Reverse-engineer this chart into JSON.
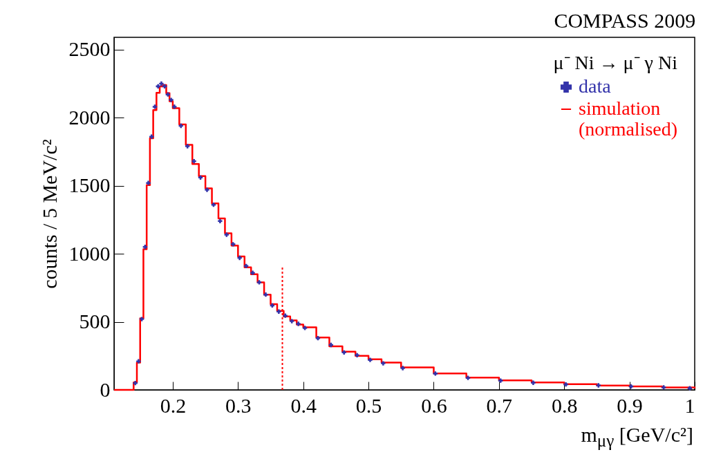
{
  "chart_data": {
    "type": "scatter",
    "title": "COMPASS 2009",
    "xlabel": "m$_{μγ}$ [GeV/c²]",
    "ylabel": "counts / 5 MeV/c²",
    "legend_title": "μ⁻ Ni → μ⁻ γ Ni",
    "legend": "top right",
    "grid": false,
    "xlim": [
      0.11,
      1.0
    ],
    "ylim": [
      0,
      2590
    ],
    "xticks": [
      0.2,
      0.3,
      0.4,
      0.5,
      0.6,
      0.7,
      0.8,
      0.9,
      1
    ],
    "yticks": [
      0,
      500,
      1000,
      1500,
      2000,
      2500
    ],
    "ref_lines": [
      {
        "axis": "x",
        "value": 0.368,
        "color": "#ff0000",
        "line_style": "dotted"
      }
    ],
    "series": [
      {
        "name": "data",
        "marker": "cross",
        "color": "#3333aa",
        "x": [
          0.1425,
          0.1475,
          0.1525,
          0.1575,
          0.1625,
          0.1675,
          0.1725,
          0.1775,
          0.1825,
          0.1875,
          0.1925,
          0.1975,
          0.2025,
          0.2125,
          0.2225,
          0.2325,
          0.2425,
          0.2525,
          0.2625,
          0.2725,
          0.2825,
          0.2925,
          0.3025,
          0.3125,
          0.3225,
          0.3325,
          0.3425,
          0.3525,
          0.3625,
          0.3725,
          0.3825,
          0.3925,
          0.4025,
          0.4225,
          0.4425,
          0.4625,
          0.4825,
          0.5025,
          0.5225,
          0.5525,
          0.6025,
          0.6525,
          0.7025,
          0.7525,
          0.8025,
          0.8525,
          0.9025,
          0.9525,
          0.9925
        ],
        "values": [
          50,
          210,
          520,
          1050,
          1520,
          1860,
          2080,
          2230,
          2250,
          2230,
          2170,
          2130,
          2080,
          1940,
          1790,
          1680,
          1560,
          1470,
          1360,
          1240,
          1140,
          1070,
          970,
          910,
          860,
          790,
          700,
          620,
          575,
          545,
          505,
          485,
          455,
          380,
          330,
          275,
          255,
          220,
          195,
          160,
          120,
          88,
          68,
          52,
          40,
          33,
          25,
          18,
          12
        ]
      },
      {
        "name": "simulation\n(normalised)",
        "type": "step",
        "color": "#ff0000",
        "x": [
          0.11,
          0.135,
          0.14,
          0.145,
          0.15,
          0.155,
          0.16,
          0.165,
          0.17,
          0.175,
          0.18,
          0.185,
          0.19,
          0.195,
          0.2,
          0.21,
          0.22,
          0.23,
          0.24,
          0.25,
          0.26,
          0.27,
          0.28,
          0.29,
          0.3,
          0.31,
          0.32,
          0.33,
          0.34,
          0.35,
          0.36,
          0.37,
          0.38,
          0.39,
          0.4,
          0.42,
          0.44,
          0.46,
          0.48,
          0.5,
          0.52,
          0.55,
          0.6,
          0.65,
          0.7,
          0.75,
          0.8,
          0.85,
          0.9,
          0.95,
          1.0
        ],
        "values": [
          0,
          0,
          54,
          200,
          525,
          1033,
          1504,
          1848,
          2056,
          2183,
          2230,
          2240,
          2180,
          2120,
          2070,
          1950,
          1800,
          1660,
          1570,
          1480,
          1370,
          1260,
          1150,
          1060,
          980,
          900,
          850,
          790,
          700,
          630,
          580,
          540,
          510,
          480,
          460,
          385,
          320,
          280,
          250,
          225,
          200,
          165,
          120,
          90,
          70,
          55,
          42,
          32,
          26,
          18,
          10
        ]
      }
    ]
  }
}
